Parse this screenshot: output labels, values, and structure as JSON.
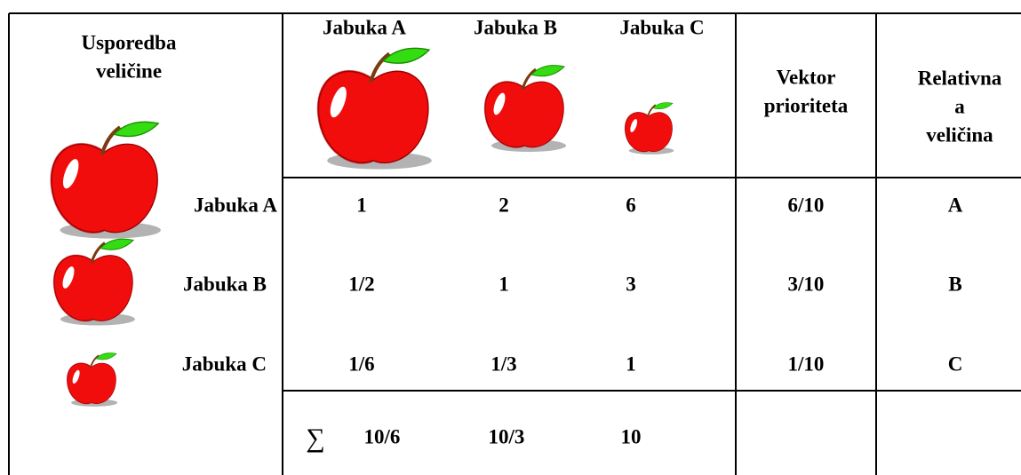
{
  "corner_label": [
    "Usporedba",
    "veličine"
  ],
  "columns": [
    "Jabuka A",
    "Jabuka B",
    "Jabuka C"
  ],
  "priority_header": [
    "Vektor",
    "prioriteta"
  ],
  "relative_header": [
    "Relativna",
    "a",
    "veličina"
  ],
  "rows": [
    {
      "label": "Jabuka A",
      "values": [
        "1",
        "2",
        "6"
      ],
      "priority": "6/10",
      "relative": "A"
    },
    {
      "label": "Jabuka B",
      "values": [
        "1/2",
        "1",
        "3"
      ],
      "priority": "3/10",
      "relative": "B"
    },
    {
      "label": "Jabuka C",
      "values": [
        "1/6",
        "1/3",
        "1"
      ],
      "priority": "1/10",
      "relative": "C"
    }
  ],
  "sum": {
    "symbol": "∑",
    "values": [
      "10/6",
      "10/3",
      "10"
    ]
  }
}
